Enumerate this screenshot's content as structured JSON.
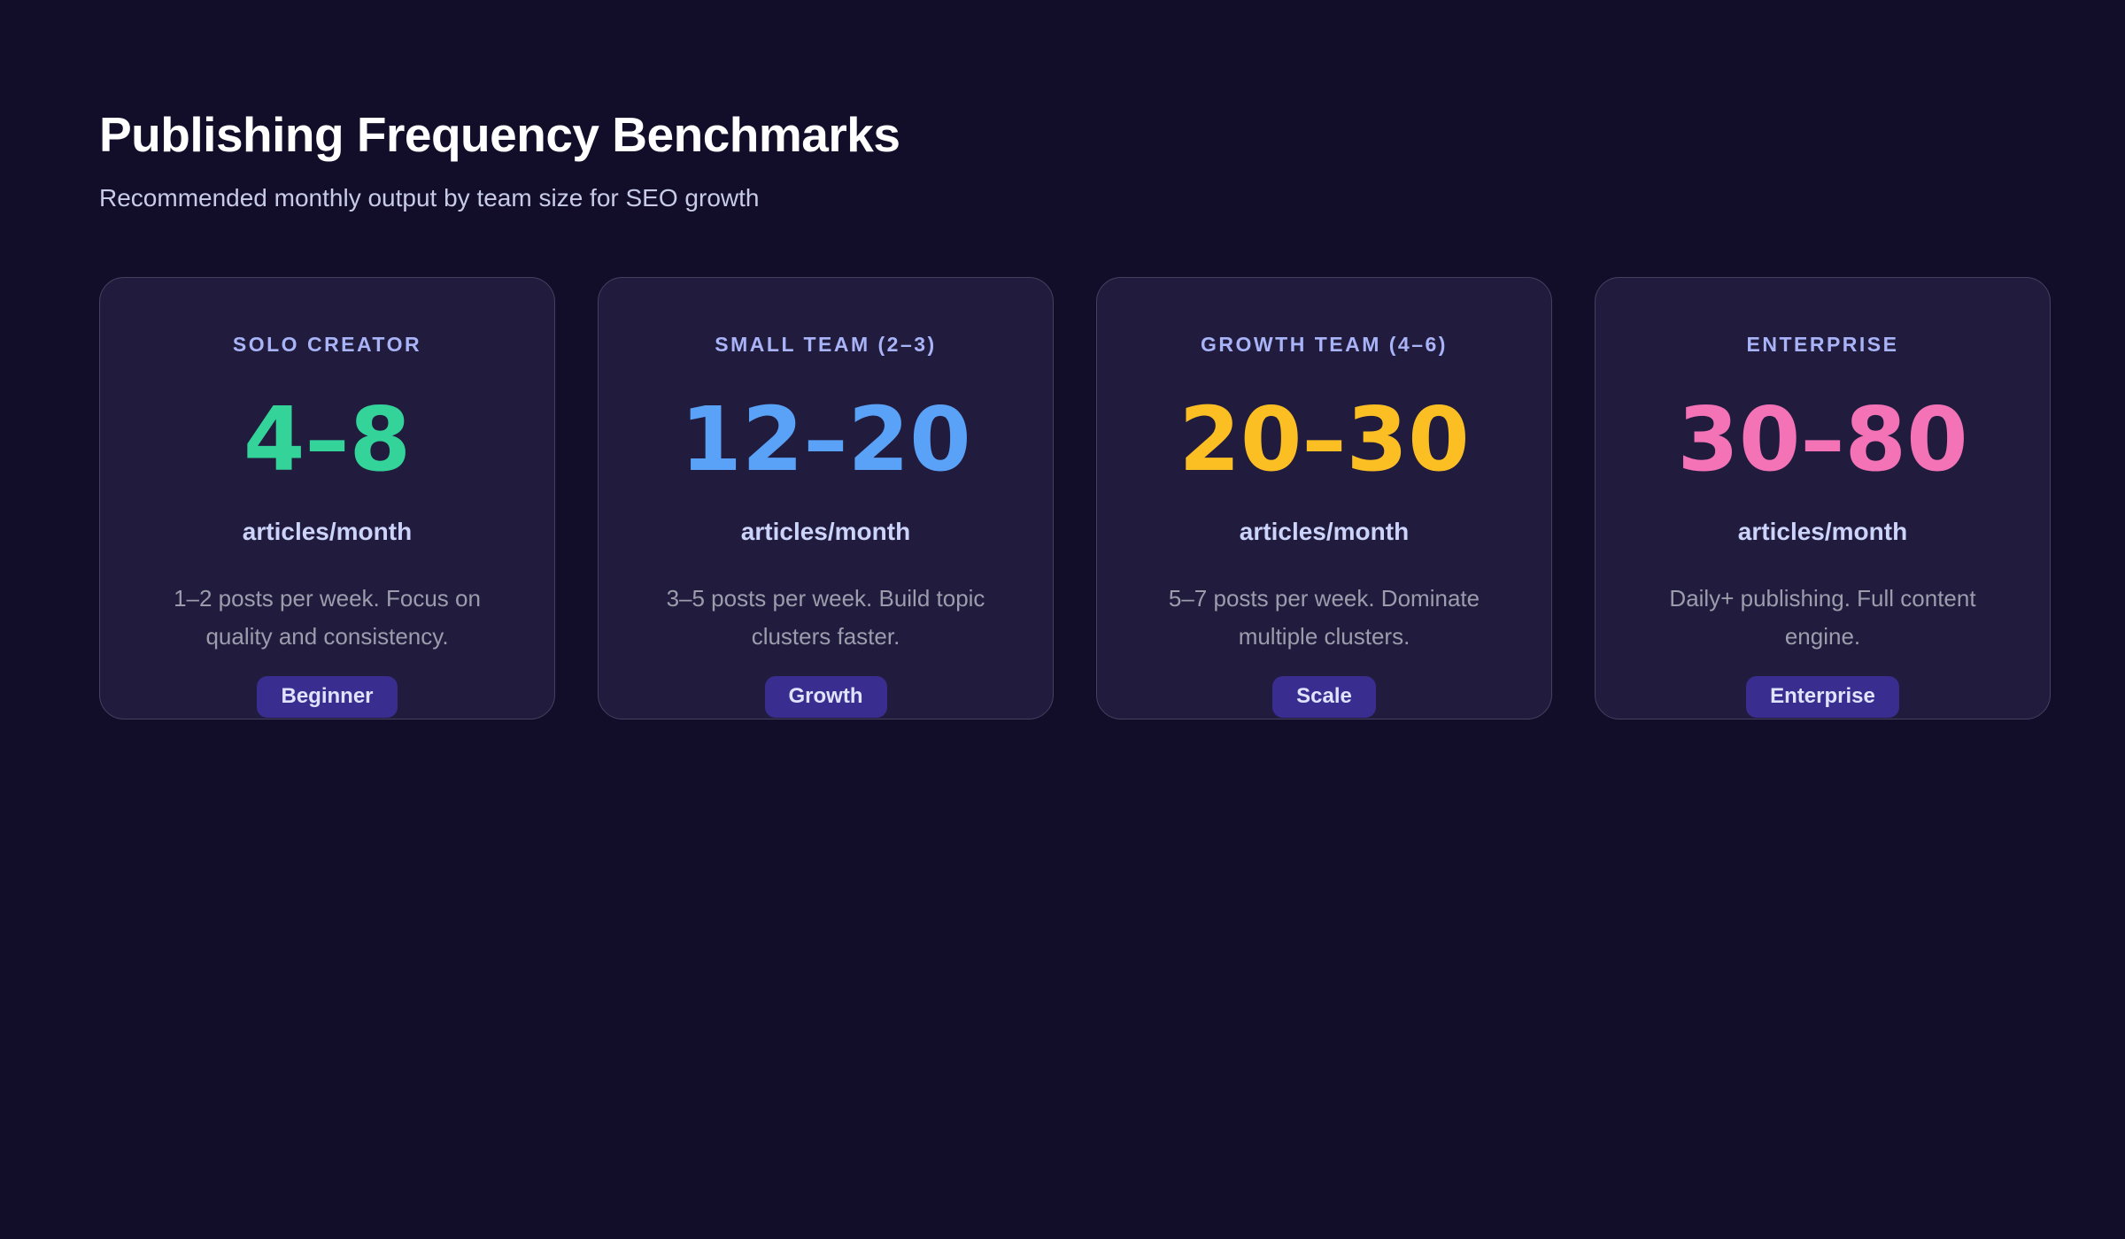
{
  "page": {
    "title": "Publishing Frequency Benchmarks",
    "subtitle": "Recommended monthly output by team size for SEO growth"
  },
  "colors": {
    "background": "#120e29",
    "card_background": "#211c3d",
    "card_border": "#46405f",
    "label_text": "#a9b4f8",
    "unit_text": "#cdd4fb",
    "description_text": "#9c9cad",
    "badge_background": "#392e8f",
    "badge_text": "#dfe3fe",
    "accent_green": "#34d399",
    "accent_blue": "#5aa2f8",
    "accent_amber": "#fbbf24",
    "accent_pink": "#f472b6"
  },
  "cards": [
    {
      "label": "SOLO CREATOR",
      "range": "4–8",
      "unit": "articles/month",
      "description": "1–2 posts per week. Focus on\nquality and consistency.",
      "badge": "Beginner",
      "accent": "#34d399"
    },
    {
      "label": "SMALL TEAM (2–3)",
      "range": "12–20",
      "unit": "articles/month",
      "description": "3–5 posts per week. Build topic\nclusters faster.",
      "badge": "Growth",
      "accent": "#5aa2f8"
    },
    {
      "label": "GROWTH TEAM (4–6)",
      "range": "20–30",
      "unit": "articles/month",
      "description": "5–7 posts per week. Dominate\nmultiple clusters.",
      "badge": "Scale",
      "accent": "#fbbf24"
    },
    {
      "label": "ENTERPRISE",
      "range": "30–80",
      "unit": "articles/month",
      "description": "Daily+ publishing. Full content\nengine.",
      "badge": "Enterprise",
      "accent": "#f472b6"
    }
  ]
}
